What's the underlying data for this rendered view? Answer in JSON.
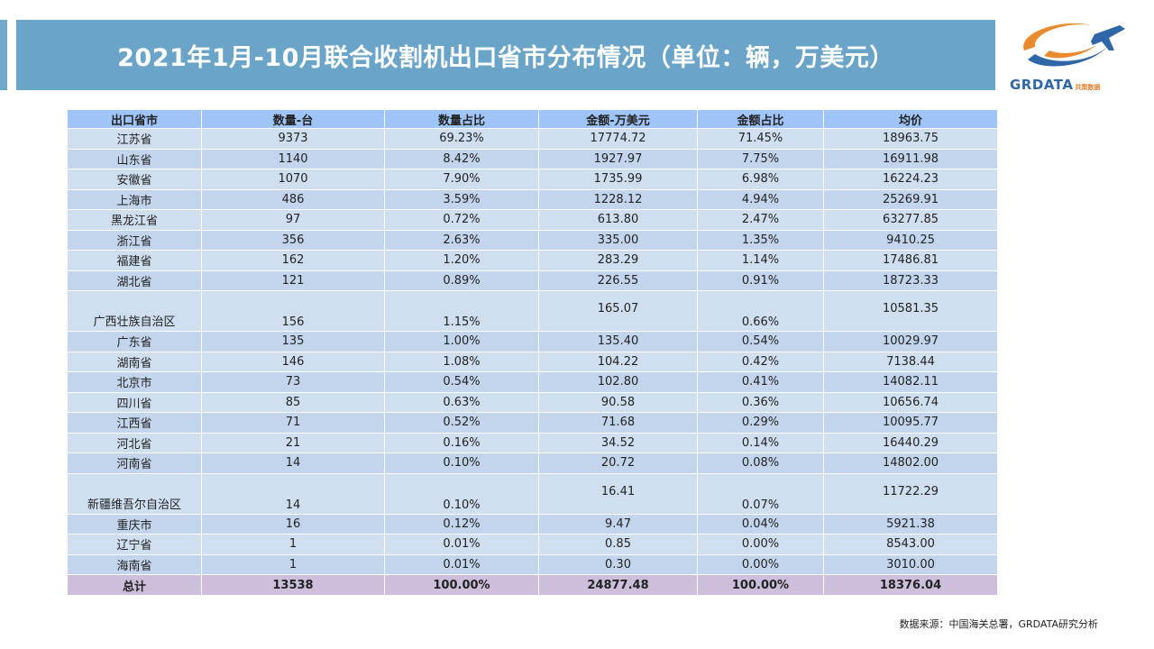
{
  "title": "2021年1月-10月联合收割机出口省市分布情况（单位：辆，万美元）",
  "logo": {
    "main": "GRDATA",
    "sub": "共策数据",
    "colors": {
      "swoosh_orange": "#ea8a2e",
      "swoosh_blue": "#2f66a8",
      "plane": "#2f66a8"
    }
  },
  "colors": {
    "title_bg": "#6aa5c9",
    "header_bg": "#9fc5f8",
    "row_a": "#cfdff0",
    "row_b": "#c3d5ec",
    "total_bg": "#cdbfdc"
  },
  "table": {
    "headers": [
      "出口省市",
      "数量-台",
      "数量占比",
      "金额-万美元",
      "金额占比",
      "均价"
    ],
    "rows": [
      {
        "province": "江苏省",
        "qty": "9373",
        "qty_pct": "69.23%",
        "amount": "17774.72",
        "amt_pct": "71.45%",
        "avg": "18963.75"
      },
      {
        "province": "山东省",
        "qty": "1140",
        "qty_pct": "8.42%",
        "amount": "1927.97",
        "amt_pct": "7.75%",
        "avg": "16911.98"
      },
      {
        "province": "安徽省",
        "qty": "1070",
        "qty_pct": "7.90%",
        "amount": "1735.99",
        "amt_pct": "6.98%",
        "avg": "16224.23"
      },
      {
        "province": "上海市",
        "qty": "486",
        "qty_pct": "3.59%",
        "amount": "1228.12",
        "amt_pct": "4.94%",
        "avg": "25269.91"
      },
      {
        "province": "黑龙江省",
        "qty": "97",
        "qty_pct": "0.72%",
        "amount": "613.80",
        "amt_pct": "2.47%",
        "avg": "63277.85"
      },
      {
        "province": "浙江省",
        "qty": "356",
        "qty_pct": "2.63%",
        "amount": "335.00",
        "amt_pct": "1.35%",
        "avg": "9410.25"
      },
      {
        "province": "福建省",
        "qty": "162",
        "qty_pct": "1.20%",
        "amount": "283.29",
        "amt_pct": "1.14%",
        "avg": "17486.81"
      },
      {
        "province": "湖北省",
        "qty": "121",
        "qty_pct": "0.89%",
        "amount": "226.55",
        "amt_pct": "0.91%",
        "avg": "18723.33"
      },
      {
        "province": "广西壮族自治区",
        "qty": "156",
        "qty_pct": "1.15%",
        "amount": "165.07",
        "amt_pct": "0.66%",
        "avg": "10581.35"
      },
      {
        "province": "广东省",
        "qty": "135",
        "qty_pct": "1.00%",
        "amount": "135.40",
        "amt_pct": "0.54%",
        "avg": "10029.97"
      },
      {
        "province": "湖南省",
        "qty": "146",
        "qty_pct": "1.08%",
        "amount": "104.22",
        "amt_pct": "0.42%",
        "avg": "7138.44"
      },
      {
        "province": "北京市",
        "qty": "73",
        "qty_pct": "0.54%",
        "amount": "102.80",
        "amt_pct": "0.41%",
        "avg": "14082.11"
      },
      {
        "province": "四川省",
        "qty": "85",
        "qty_pct": "0.63%",
        "amount": "90.58",
        "amt_pct": "0.36%",
        "avg": "10656.74"
      },
      {
        "province": "江西省",
        "qty": "71",
        "qty_pct": "0.52%",
        "amount": "71.68",
        "amt_pct": "0.29%",
        "avg": "10095.77"
      },
      {
        "province": "河北省",
        "qty": "21",
        "qty_pct": "0.16%",
        "amount": "34.52",
        "amt_pct": "0.14%",
        "avg": "16440.29"
      },
      {
        "province": "河南省",
        "qty": "14",
        "qty_pct": "0.10%",
        "amount": "20.72",
        "amt_pct": "0.08%",
        "avg": "14802.00"
      },
      {
        "province": "新疆维吾尔自治区",
        "qty": "14",
        "qty_pct": "0.10%",
        "amount": "16.41",
        "amt_pct": "0.07%",
        "avg": "11722.29"
      },
      {
        "province": "重庆市",
        "qty": "16",
        "qty_pct": "0.12%",
        "amount": "9.47",
        "amt_pct": "0.04%",
        "avg": "5921.38"
      },
      {
        "province": "辽宁省",
        "qty": "1",
        "qty_pct": "0.01%",
        "amount": "0.85",
        "amt_pct": "0.00%",
        "avg": "8543.00"
      },
      {
        "province": "海南省",
        "qty": "1",
        "qty_pct": "0.01%",
        "amount": "0.30",
        "amt_pct": "0.00%",
        "avg": "3010.00"
      }
    ],
    "total": {
      "province": "总计",
      "qty": "13538",
      "qty_pct": "100.00%",
      "amount": "24877.48",
      "amt_pct": "100.00%",
      "avg": "18376.04"
    }
  },
  "source": "数据来源：中国海关总署，GRDATA研究分析"
}
